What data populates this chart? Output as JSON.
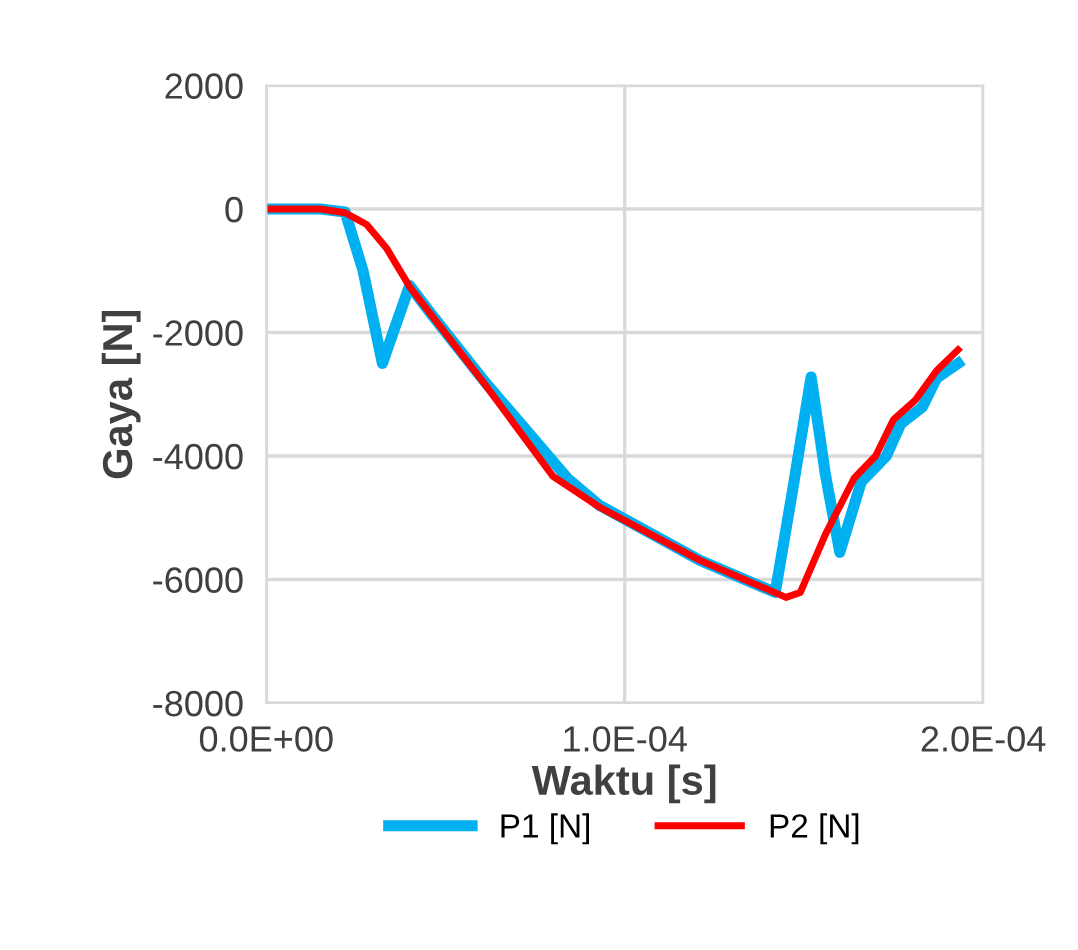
{
  "chart_data": {
    "type": "line",
    "xlabel": "Waktu [s]",
    "ylabel": "Gaya [N]",
    "xlim": [
      0,
      0.0002
    ],
    "ylim": [
      -8000,
      2000
    ],
    "xticks": [
      {
        "value": 0,
        "label": "0.0E+00"
      },
      {
        "value": 0.0001,
        "label": "1.0E-04"
      },
      {
        "value": 0.0002,
        "label": "2.0E-04"
      }
    ],
    "yticks": [
      -8000,
      -6000,
      -4000,
      -2000,
      0,
      2000
    ],
    "grid": true,
    "legend": "bottom",
    "marker": "none",
    "line_style": "solid",
    "series": [
      {
        "name": "P1 [N]",
        "color": "#00b0f0",
        "x": [
          0,
          1.5e-05,
          2.2e-05,
          2.7e-05,
          3.24e-05,
          3.6e-05,
          4e-05,
          4.6e-05,
          6.1e-05,
          8.4e-05,
          9.3e-05,
          0.000121,
          0.000142,
          0.000147,
          0.000152,
          0.000156,
          0.00016,
          0.000166,
          0.000173,
          0.000177,
          0.000183,
          0.000187,
          0.000193
        ],
        "values": [
          0,
          0,
          -50,
          -1000,
          -2500,
          -1900,
          -1240,
          -1700,
          -2800,
          -4360,
          -4800,
          -5690,
          -6210,
          -4500,
          -2720,
          -4300,
          -5560,
          -4420,
          -4000,
          -3480,
          -3210,
          -2740,
          -2500
        ]
      },
      {
        "name": "P2 [N]",
        "color": "#ff0000",
        "x": [
          0,
          1.5e-05,
          2.2e-05,
          2.8e-05,
          3.35e-05,
          4e-05,
          6.1e-05,
          8e-05,
          9.3e-05,
          0.000121,
          0.000145,
          0.000149,
          0.000156,
          0.000164,
          0.00017,
          0.000175,
          0.000181,
          0.000187,
          0.000193
        ],
        "values": [
          0,
          0,
          -60,
          -250,
          -630,
          -1260,
          -2840,
          -4330,
          -4830,
          -5690,
          -6290,
          -6210,
          -5270,
          -4360,
          -4000,
          -3410,
          -3100,
          -2620,
          -2280
        ]
      }
    ]
  }
}
